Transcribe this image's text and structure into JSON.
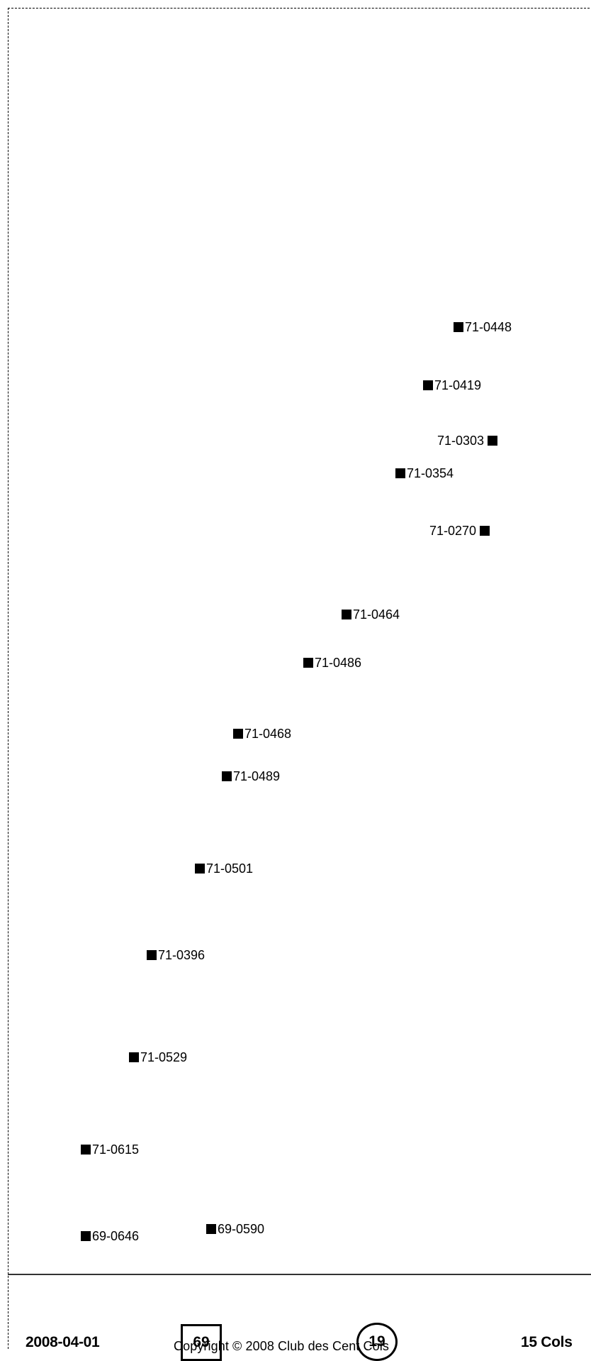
{
  "markers": [
    {
      "label": "71-0448",
      "side": "left"
    },
    {
      "label": "71-0419",
      "side": "left"
    },
    {
      "label": "71-0303",
      "side": "right"
    },
    {
      "label": "71-0354",
      "side": "left"
    },
    {
      "label": "71-0270",
      "side": "right"
    },
    {
      "label": "71-0464",
      "side": "left"
    },
    {
      "label": "71-0486",
      "side": "left"
    },
    {
      "label": "71-0468",
      "side": "left"
    },
    {
      "label": "71-0489",
      "side": "left"
    },
    {
      "label": "71-0501",
      "side": "left"
    },
    {
      "label": "71-0396",
      "side": "left"
    },
    {
      "label": "71-0529",
      "side": "left"
    },
    {
      "label": "71-0615",
      "side": "left"
    },
    {
      "label": "69-0646",
      "side": "left"
    },
    {
      "label": "69-0590",
      "side": "left"
    }
  ],
  "footer": {
    "date": "2008-04-01",
    "department": "69",
    "circle_number": "19",
    "cols_count": "15 Cols",
    "copyright": "Copyright © 2008 Club des Cent Cols"
  }
}
